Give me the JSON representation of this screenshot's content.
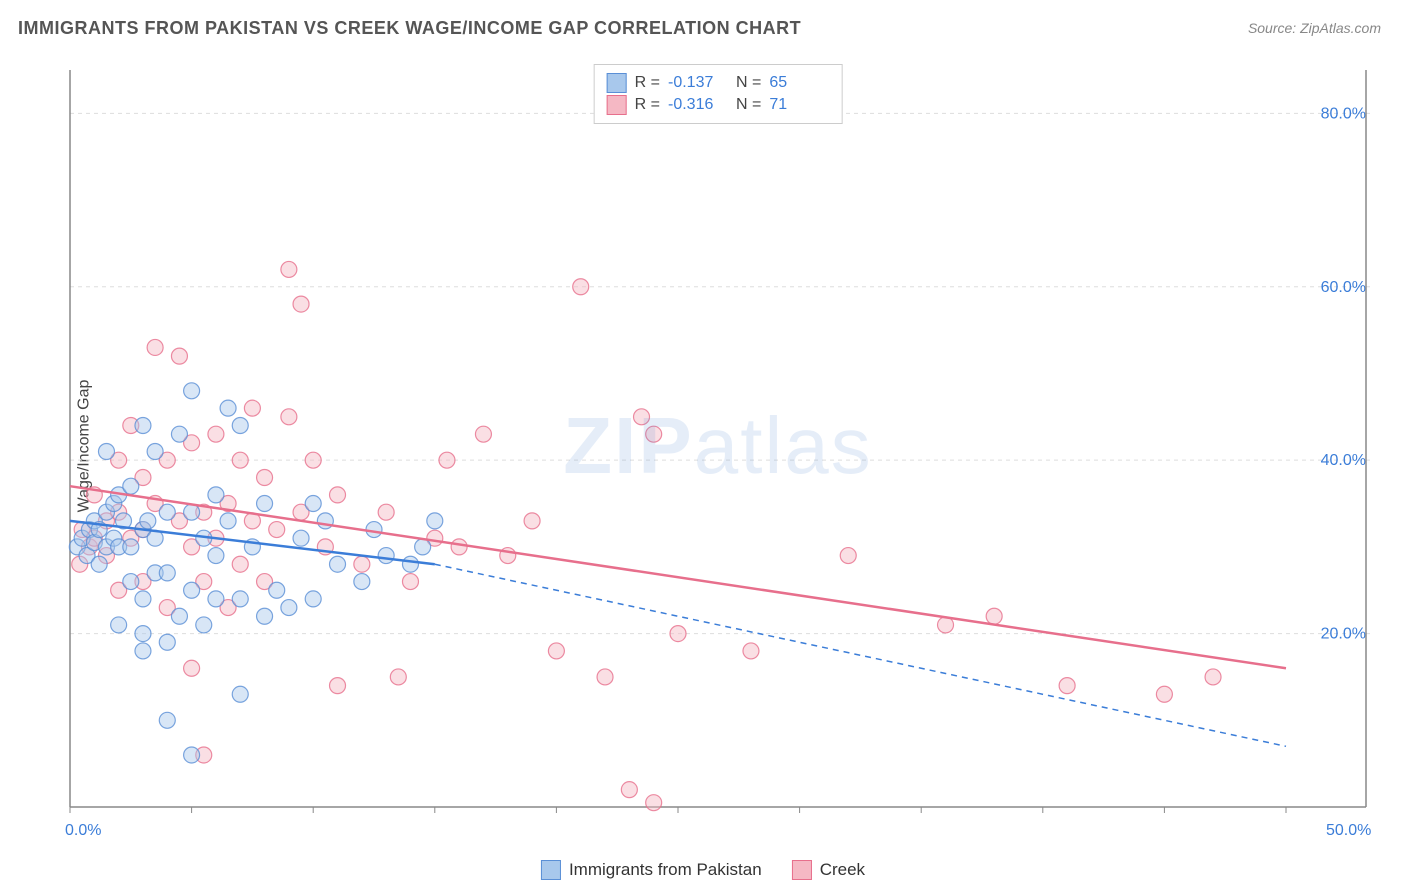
{
  "title": "IMMIGRANTS FROM PAKISTAN VS CREEK WAGE/INCOME GAP CORRELATION CHART",
  "source": "Source: ZipAtlas.com",
  "ylabel": "Wage/Income Gap",
  "watermark": "ZIPatlas",
  "chart": {
    "type": "scatter",
    "xlim": [
      0,
      50
    ],
    "ylim": [
      0,
      85
    ],
    "xticks": [
      0,
      5,
      10,
      15,
      20,
      25,
      30,
      35,
      40,
      45,
      50
    ],
    "xtick_labels": {
      "0": "0.0%",
      "50": "50.0%"
    },
    "yticks": [
      20,
      40,
      60,
      80
    ],
    "ytick_labels": {
      "20": "20.0%",
      "40": "40.0%",
      "60": "60.0%",
      "80": "80.0%"
    },
    "grid_color": "#dddddd",
    "axis_color": "#888888",
    "label_color": "#3b7dd8",
    "background_color": "#ffffff",
    "marker_radius": 8,
    "marker_opacity": 0.45,
    "series": [
      {
        "name": "Immigrants from Pakistan",
        "fill": "#a8c8ec",
        "stroke": "#5a8fd6",
        "r_value": "-0.137",
        "n_value": "65",
        "trend": {
          "x1": 0,
          "y1": 33,
          "x2_solid": 15,
          "y2_solid": 28,
          "x2": 50,
          "y2": 7,
          "color": "#3b7dd8",
          "width": 2.5
        },
        "points": [
          [
            0.3,
            30
          ],
          [
            0.5,
            31
          ],
          [
            0.7,
            29
          ],
          [
            0.8,
            32
          ],
          [
            1,
            30.5
          ],
          [
            1,
            33
          ],
          [
            1.2,
            28
          ],
          [
            1.2,
            32
          ],
          [
            1.5,
            34
          ],
          [
            1.5,
            30
          ],
          [
            1.5,
            41
          ],
          [
            1.8,
            35
          ],
          [
            1.8,
            31
          ],
          [
            2,
            30
          ],
          [
            2,
            36
          ],
          [
            2,
            21
          ],
          [
            2.2,
            33
          ],
          [
            2.5,
            30
          ],
          [
            2.5,
            26
          ],
          [
            2.5,
            37
          ],
          [
            3,
            44
          ],
          [
            3,
            32
          ],
          [
            3,
            24
          ],
          [
            3,
            20
          ],
          [
            3,
            18
          ],
          [
            3.2,
            33
          ],
          [
            3.5,
            41
          ],
          [
            3.5,
            27
          ],
          [
            3.5,
            31
          ],
          [
            4,
            19
          ],
          [
            4,
            34
          ],
          [
            4,
            27
          ],
          [
            4,
            10
          ],
          [
            4.5,
            22
          ],
          [
            4.5,
            43
          ],
          [
            5,
            48
          ],
          [
            5,
            34
          ],
          [
            5,
            25
          ],
          [
            5,
            6
          ],
          [
            5.5,
            31
          ],
          [
            5.5,
            21
          ],
          [
            6,
            36
          ],
          [
            6,
            29
          ],
          [
            6,
            24
          ],
          [
            6.5,
            33
          ],
          [
            6.5,
            46
          ],
          [
            7,
            44
          ],
          [
            7,
            24
          ],
          [
            7,
            13
          ],
          [
            7.5,
            30
          ],
          [
            8,
            35
          ],
          [
            8,
            22
          ],
          [
            8.5,
            25
          ],
          [
            9,
            23
          ],
          [
            9.5,
            31
          ],
          [
            10,
            24
          ],
          [
            10,
            35
          ],
          [
            10.5,
            33
          ],
          [
            11,
            28
          ],
          [
            12,
            26
          ],
          [
            12.5,
            32
          ],
          [
            13,
            29
          ],
          [
            14,
            28
          ],
          [
            14.5,
            30
          ],
          [
            15,
            33
          ]
        ]
      },
      {
        "name": "Creek",
        "fill": "#f5b8c4",
        "stroke": "#e76f8c",
        "r_value": "-0.316",
        "n_value": "71",
        "trend": {
          "x1": 0,
          "y1": 37,
          "x2_solid": 50,
          "y2_solid": 16,
          "x2": 50,
          "y2": 16,
          "color": "#e76f8c",
          "width": 2.5
        },
        "points": [
          [
            0.4,
            28
          ],
          [
            0.5,
            32
          ],
          [
            0.8,
            30
          ],
          [
            1,
            31
          ],
          [
            1,
            36
          ],
          [
            1.5,
            33
          ],
          [
            1.5,
            29
          ],
          [
            2,
            34
          ],
          [
            2,
            40
          ],
          [
            2,
            25
          ],
          [
            2.5,
            31
          ],
          [
            2.5,
            44
          ],
          [
            3,
            38
          ],
          [
            3,
            32
          ],
          [
            3,
            26
          ],
          [
            3.5,
            53
          ],
          [
            3.5,
            35
          ],
          [
            4,
            40
          ],
          [
            4,
            23
          ],
          [
            4.5,
            33
          ],
          [
            4.5,
            52
          ],
          [
            5,
            42
          ],
          [
            5,
            30
          ],
          [
            5,
            16
          ],
          [
            5.5,
            34
          ],
          [
            5.5,
            26
          ],
          [
            5.5,
            6
          ],
          [
            6,
            43
          ],
          [
            6,
            31
          ],
          [
            6.5,
            35
          ],
          [
            6.5,
            23
          ],
          [
            7,
            40
          ],
          [
            7,
            28
          ],
          [
            7.5,
            46
          ],
          [
            7.5,
            33
          ],
          [
            8,
            38
          ],
          [
            8,
            26
          ],
          [
            8.5,
            32
          ],
          [
            9,
            62
          ],
          [
            9,
            45
          ],
          [
            9.5,
            34
          ],
          [
            9.5,
            58
          ],
          [
            10,
            40
          ],
          [
            10.5,
            30
          ],
          [
            11,
            36
          ],
          [
            11,
            14
          ],
          [
            12,
            28
          ],
          [
            13,
            34
          ],
          [
            13.5,
            15
          ],
          [
            14,
            26
          ],
          [
            15,
            31
          ],
          [
            15.5,
            40
          ],
          [
            16,
            30
          ],
          [
            17,
            43
          ],
          [
            18,
            29
          ],
          [
            19,
            33
          ],
          [
            20,
            18
          ],
          [
            21,
            60
          ],
          [
            22,
            15
          ],
          [
            23,
            2
          ],
          [
            23.5,
            45
          ],
          [
            24,
            43
          ],
          [
            24,
            0.5
          ],
          [
            25,
            20
          ],
          [
            28,
            18
          ],
          [
            32,
            29
          ],
          [
            36,
            21
          ],
          [
            38,
            22
          ],
          [
            41,
            14
          ],
          [
            45,
            13
          ],
          [
            47,
            15
          ]
        ]
      }
    ]
  },
  "legend_bottom": [
    {
      "label": "Immigrants from Pakistan",
      "fill": "#a8c8ec",
      "stroke": "#5a8fd6"
    },
    {
      "label": "Creek",
      "fill": "#f5b8c4",
      "stroke": "#e76f8c"
    }
  ]
}
